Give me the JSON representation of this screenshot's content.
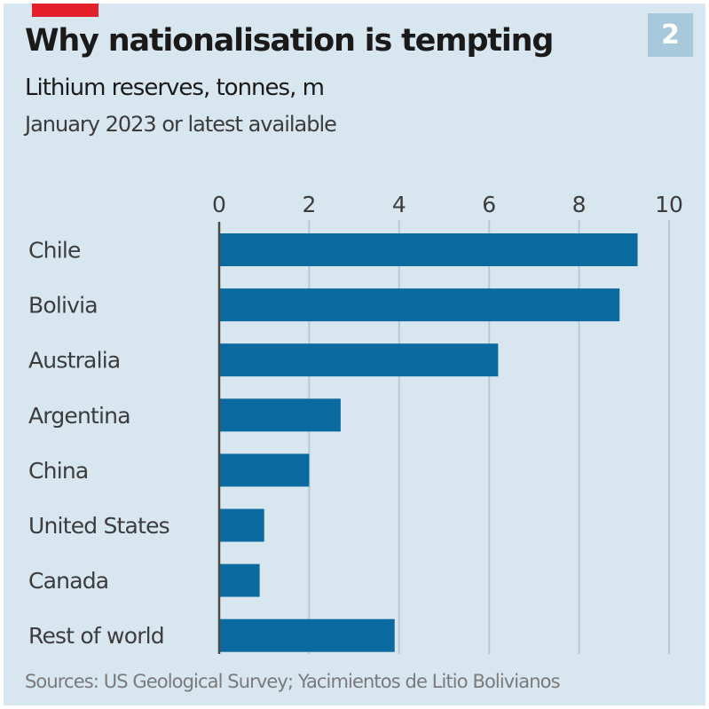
{
  "header": {
    "badge": "2",
    "title": "Why nationalisation is tempting",
    "subtitle": "Lithium reserves, tonnes, m",
    "note": "January 2023 or latest available"
  },
  "footer": {
    "source": "Sources: US Geological Survey; Yacimientos de Litio Bolivianos"
  },
  "colors": {
    "background": "#d7e6ef",
    "bar": "#0b6a9f",
    "accent_red": "#e3202a",
    "badge": "#a8c8dc"
  },
  "chart_data": {
    "type": "bar",
    "orientation": "horizontal",
    "title": "Why nationalisation is tempting",
    "subtitle": "Lithium reserves, tonnes, m",
    "xlabel": "",
    "ylabel": "",
    "categories": [
      "Chile",
      "Bolivia",
      "Australia",
      "Argentina",
      "China",
      "United States",
      "Canada",
      "Rest of world"
    ],
    "values": [
      9.3,
      8.9,
      6.2,
      2.7,
      2.0,
      1.0,
      0.9,
      3.9
    ],
    "xlim": [
      0,
      10
    ],
    "xticks": [
      0,
      2,
      4,
      6,
      8,
      10
    ],
    "xtick_labels": [
      "0",
      "2",
      "4",
      "6",
      "8",
      "10"
    ],
    "grid": true,
    "axis_position": "top",
    "legend": "none"
  }
}
